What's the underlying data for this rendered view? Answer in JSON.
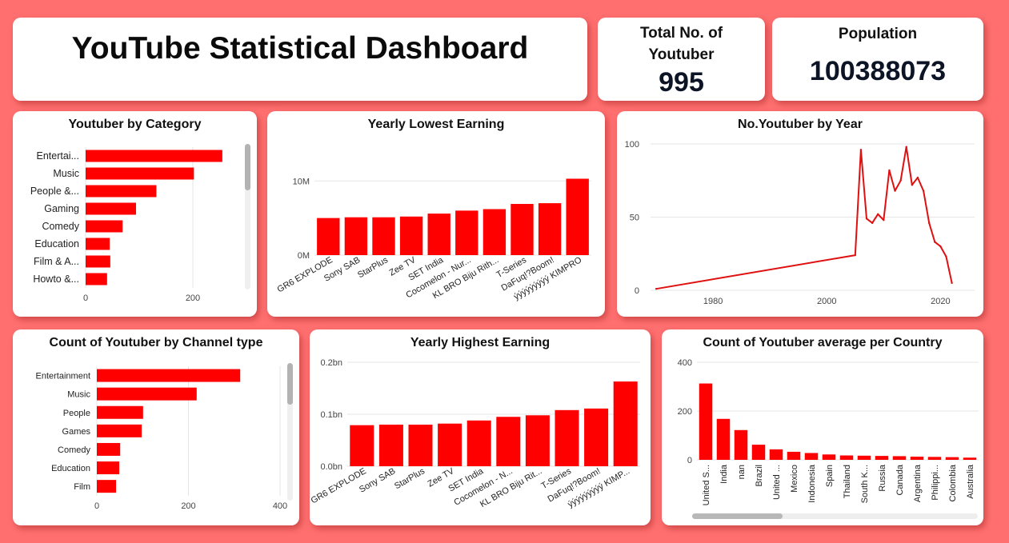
{
  "header": {
    "title": "YouTube Statistical Dashboard"
  },
  "kpis": {
    "total": {
      "label": "Total No. of Youtuber",
      "value": "995"
    },
    "population": {
      "label": "Population",
      "value": "100388073"
    }
  },
  "colors": {
    "bar": "#ff0000",
    "line": "#e01010",
    "background": "#ff6f6f",
    "card": "#ffffff"
  },
  "chart_data": [
    {
      "id": "category",
      "type": "bar",
      "orientation": "horizontal",
      "title": "Youtuber by Category",
      "categories": [
        "Entertai...",
        "Music",
        "People &...",
        "Gaming",
        "Comedy",
        "Education",
        "Film & A...",
        "Howto &..."
      ],
      "values": [
        255,
        202,
        132,
        94,
        69,
        45,
        46,
        40
      ],
      "xlim": [
        0,
        300
      ],
      "xticks": [
        "0",
        "200"
      ],
      "grid": true,
      "scrollbar": true
    },
    {
      "id": "lowest",
      "type": "bar",
      "title": "Yearly Lowest Earning",
      "categories": [
        "GR6 EXPLODE",
        "Sony SAB",
        "StarPlus",
        "Zee TV",
        "SET India",
        "Cocomelon - Nur...",
        "KL BRO Biju Rith...",
        "T-Series",
        "DaFuq!?Boom!",
        "ýýýýýýýýý KIMPRO"
      ],
      "values": [
        5000000,
        5100000,
        5100000,
        5200000,
        5600000,
        6000000,
        6200000,
        6900000,
        7000000,
        10300000
      ],
      "ylim": [
        0,
        11000000
      ],
      "yticks": [
        "0M",
        "10M"
      ],
      "grid": true
    },
    {
      "id": "year",
      "type": "line",
      "title": "No.Youtuber by Year",
      "x": [
        1970,
        2005,
        2006,
        2007,
        2008,
        2009,
        2010,
        2011,
        2012,
        2013,
        2014,
        2015,
        2016,
        2017,
        2018,
        2019,
        2020,
        2021,
        2022
      ],
      "y": [
        1,
        24,
        96,
        49,
        46,
        52,
        48,
        82,
        68,
        75,
        98,
        72,
        77,
        68,
        46,
        33,
        30,
        23,
        5
      ],
      "xlim": [
        1969,
        2026
      ],
      "ylim": [
        0,
        100
      ],
      "xticks": [
        "1980",
        "2000",
        "2020"
      ],
      "yticks": [
        "0",
        "50",
        "100"
      ],
      "grid": true
    },
    {
      "id": "channel",
      "type": "bar",
      "orientation": "horizontal",
      "title": "Count of Youtuber by Channel type",
      "categories": [
        "Entertainment",
        "Music",
        "People",
        "Games",
        "Comedy",
        "Education",
        "Film"
      ],
      "values": [
        313,
        218,
        101,
        98,
        51,
        49,
        42
      ],
      "xlim": [
        0,
        400
      ],
      "xticks": [
        "0",
        "200",
        "400"
      ],
      "grid": true,
      "scrollbar": true
    },
    {
      "id": "highest",
      "type": "bar",
      "title": "Yearly Highest Earning",
      "categories": [
        "GR6 EXPLODE",
        "Sony SAB",
        "StarPlus",
        "Zee TV",
        "SET India",
        "Cocomelon - N...",
        "KL BRO Biju Rit...",
        "T-Series",
        "DaFuq!?Boom!",
        "ýýýýýýýýý KIMP..."
      ],
      "values": [
        79000000,
        80000000,
        80000000,
        82000000,
        88000000,
        95000000,
        98000000,
        108000000,
        111000000,
        163000000
      ],
      "ylim": [
        0,
        200000000
      ],
      "yticks": [
        "0.0bn",
        "0.1bn",
        "0.2bn"
      ],
      "grid": true
    },
    {
      "id": "country",
      "type": "bar",
      "title": "Count of Youtuber average per Country",
      "categories": [
        "United S...",
        "India",
        "nan",
        "Brazil",
        "United ...",
        "Mexico",
        "Indonesia",
        "Spain",
        "Thailand",
        "South K...",
        "Russia",
        "Canada",
        "Argentina",
        "Philippi...",
        "Colombia",
        "Australia"
      ],
      "values": [
        313,
        168,
        122,
        62,
        43,
        33,
        28,
        22,
        18,
        17,
        16,
        15,
        13,
        12,
        11,
        9
      ],
      "ylim": [
        0,
        400
      ],
      "yticks": [
        "0",
        "200",
        "400"
      ],
      "grid": true,
      "scrollbar": true
    }
  ]
}
